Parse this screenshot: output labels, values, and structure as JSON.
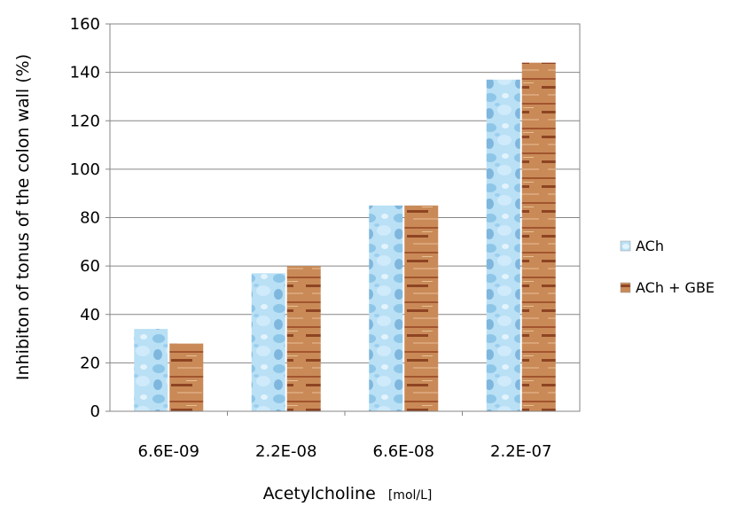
{
  "chart_data": {
    "type": "bar",
    "categories": [
      "6.6E-09",
      "2.2E-08",
      "6.6E-08",
      "2.2E-07"
    ],
    "series": [
      {
        "name": "ACh",
        "values": [
          34,
          57,
          85,
          137
        ],
        "color": "#a9d8f2"
      },
      {
        "name": "ACh + GBE",
        "values": [
          28,
          60,
          85,
          144
        ],
        "color": "#c98a58"
      }
    ],
    "title": "",
    "xlabel": "Acetylcholine",
    "xlabel_unit": "[mol/L]",
    "ylabel": "Inhibiton of tonus  of the colon wall (%)",
    "ylim": [
      0,
      160
    ],
    "yticks": [
      0,
      20,
      40,
      60,
      80,
      100,
      120,
      140,
      160
    ],
    "grid": true,
    "legend": "right"
  }
}
